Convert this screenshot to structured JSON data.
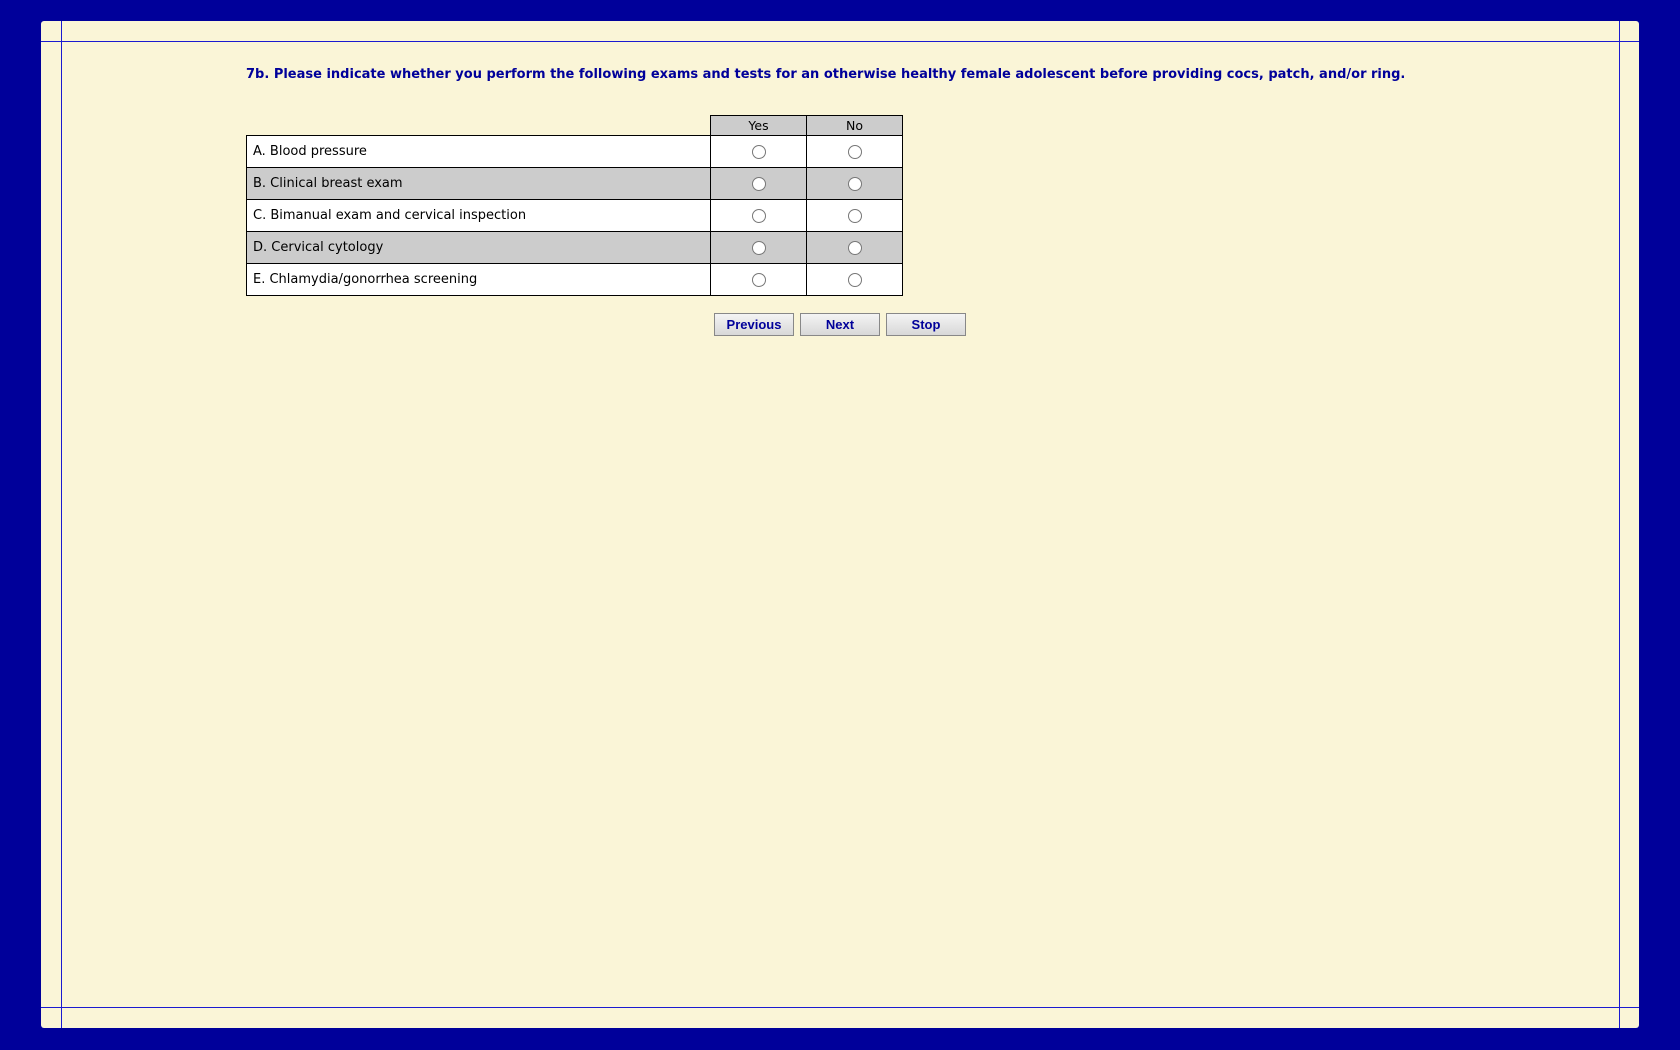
{
  "question": "7b. Please indicate whether you perform the following exams and tests for an otherwise healthy female adolescent before providing cocs, patch, and/or ring.",
  "columns": [
    "Yes",
    "No"
  ],
  "rows": [
    {
      "label": "A. Blood pressure"
    },
    {
      "label": "B. Clinical breast exam"
    },
    {
      "label": "C. Bimanual exam and cervical inspection"
    },
    {
      "label": "D. Cervical cytology"
    },
    {
      "label": "E. Chlamydia/gonorrhea screening"
    }
  ],
  "buttons": {
    "previous": "Previous",
    "next": "Next",
    "stop": "Stop"
  },
  "colors": {
    "frame": "#00009a",
    "panel": "#faf5d7",
    "alt_row": "#cccccc"
  }
}
